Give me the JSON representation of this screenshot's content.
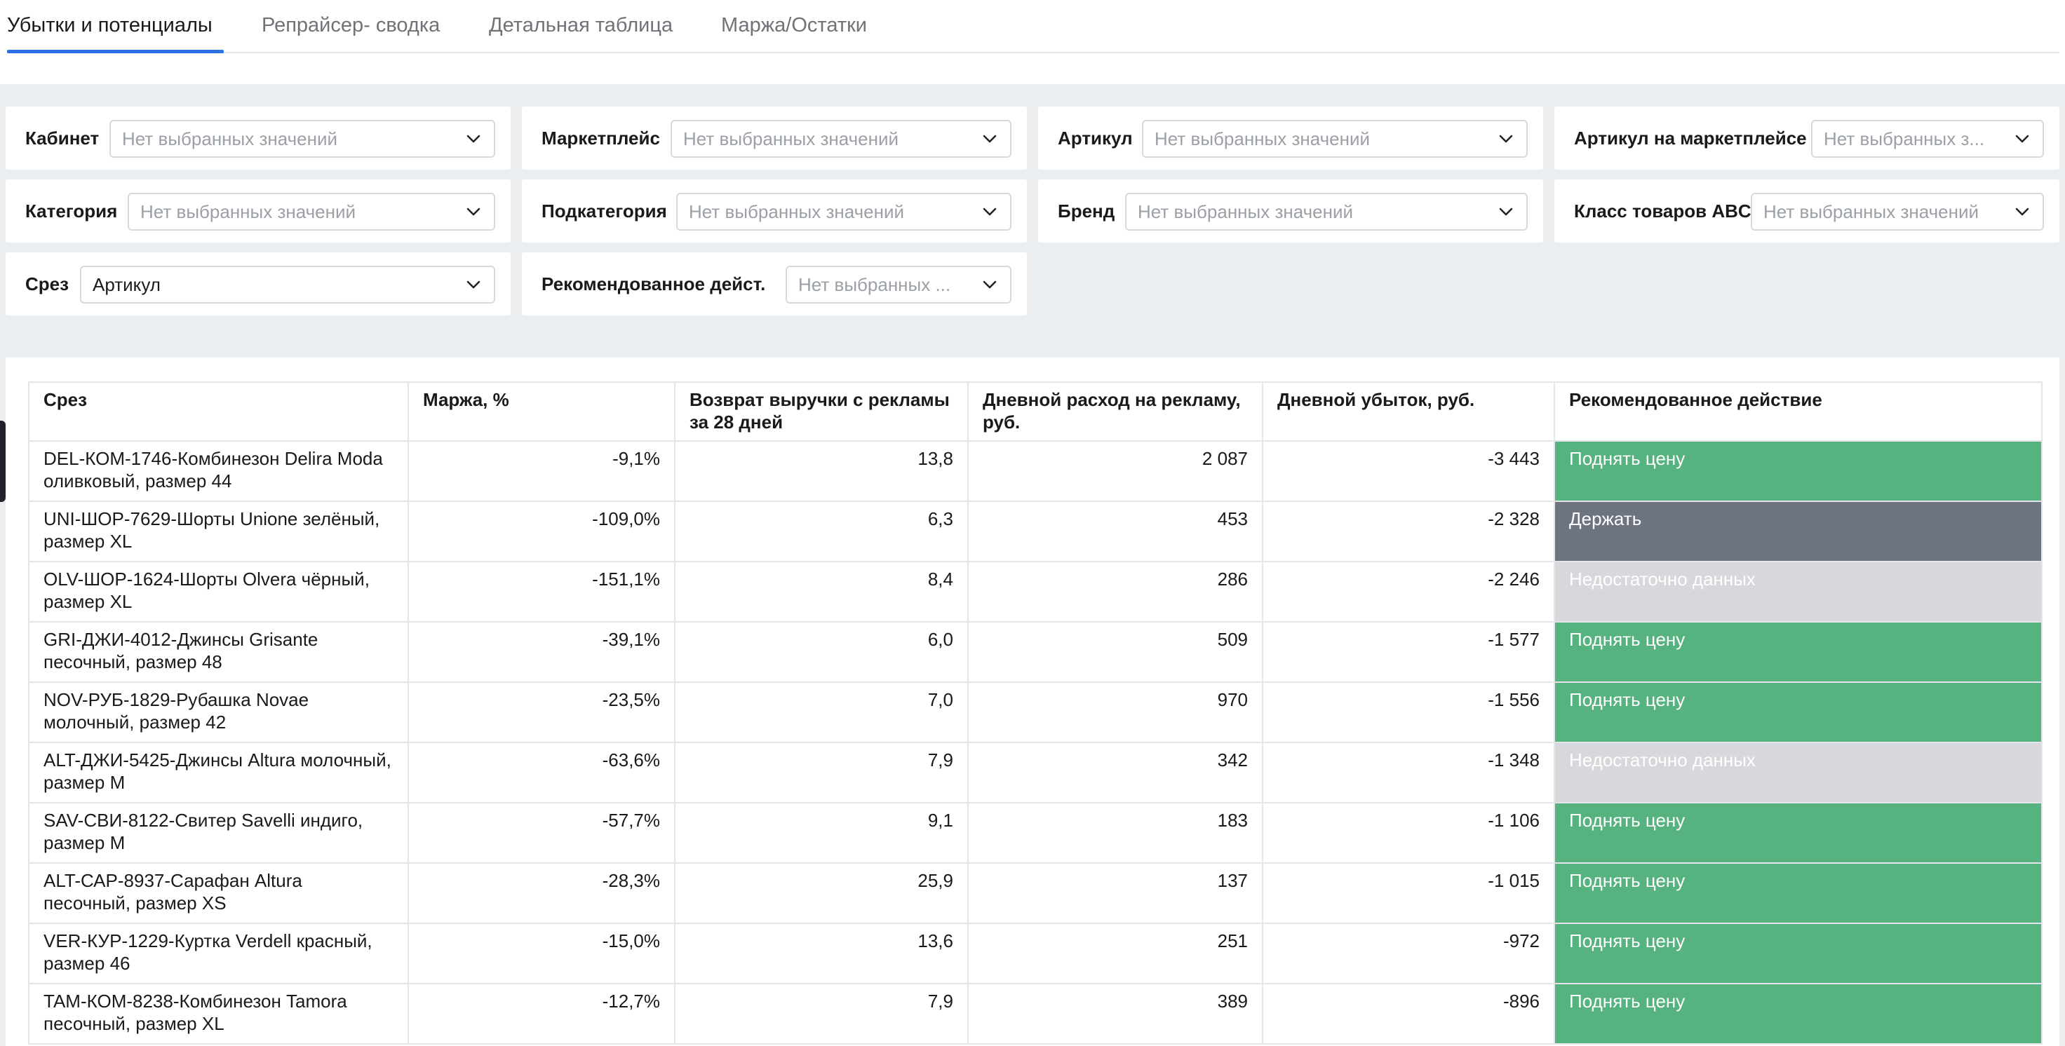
{
  "tabs": [
    {
      "label": "Убытки и потенциалы",
      "active": true
    },
    {
      "label": "Репрайсер- сводка",
      "active": false
    },
    {
      "label": "Детальная таблица",
      "active": false
    },
    {
      "label": "Маржа/Остатки",
      "active": false
    }
  ],
  "filters": [
    {
      "label": "Кабинет",
      "value": "Нет выбранных значений"
    },
    {
      "label": "Маркетплейс",
      "value": "Нет выбранных значений"
    },
    {
      "label": "Артикул",
      "value": "Нет выбранных значений"
    },
    {
      "label": "Артикул на маркетплейсе",
      "value": "Нет выбранных з..."
    },
    {
      "label": "Категория",
      "value": "Нет выбранных значений"
    },
    {
      "label": "Подкатегория",
      "value": "Нет выбранных значений"
    },
    {
      "label": "Бренд",
      "value": "Нет выбранных значений"
    },
    {
      "label": "Класс товаров ABC",
      "value": "Нет выбранных значений"
    },
    {
      "label": "Срез",
      "value": "Артикул"
    },
    {
      "label": "Рекомендованное дейст...",
      "value": "Нет выбранных ..."
    }
  ],
  "table": {
    "headers": [
      "Срез",
      "Маржа, %",
      "Возврат выручки с рекламы за 28 дней",
      "Дневной расход на рекламу, руб.",
      "Дневной убыток, руб.",
      "Рекомендованное действие"
    ],
    "rows": [
      {
        "slice": "DEL-КОМ-1746-Комбинезон Delira Moda оливковый, размер 44",
        "margin": "-9,1%",
        "roas": "13,8",
        "spend": "2 087",
        "loss": "-3 443",
        "action": "Поднять цену",
        "action_type": "green"
      },
      {
        "slice": "UNI-ШОР-7629-Шорты Unione зелёный, размер XL",
        "margin": "-109,0%",
        "roas": "6,3",
        "spend": "453",
        "loss": "-2 328",
        "action": "Держать",
        "action_type": "gray"
      },
      {
        "slice": "OLV-ШОР-1624-Шорты Olvera чёрный, размер XL",
        "margin": "-151,1%",
        "roas": "8,4",
        "spend": "286",
        "loss": "-2 246",
        "action": "Недостаточно данных",
        "action_type": "light"
      },
      {
        "slice": "GRI-ДЖИ-4012-Джинсы Grisante песочный, размер 48",
        "margin": "-39,1%",
        "roas": "6,0",
        "spend": "509",
        "loss": "-1 577",
        "action": "Поднять цену",
        "action_type": "green"
      },
      {
        "slice": "NOV-РУБ-1829-Рубашка Novae молочный, размер 42",
        "margin": "-23,5%",
        "roas": "7,0",
        "spend": "970",
        "loss": "-1 556",
        "action": "Поднять цену",
        "action_type": "green"
      },
      {
        "slice": "ALT-ДЖИ-5425-Джинсы Altura молочный, размер M",
        "margin": "-63,6%",
        "roas": "7,9",
        "spend": "342",
        "loss": "-1 348",
        "action": "Недостаточно данных",
        "action_type": "light"
      },
      {
        "slice": "SAV-СВИ-8122-Свитер Savelli индиго, размер M",
        "margin": "-57,7%",
        "roas": "9,1",
        "spend": "183",
        "loss": "-1 106",
        "action": "Поднять цену",
        "action_type": "green"
      },
      {
        "slice": "ALT-САР-8937-Сарафан Altura песочный, размер XS",
        "margin": "-28,3%",
        "roas": "25,9",
        "spend": "137",
        "loss": "-1 015",
        "action": "Поднять цену",
        "action_type": "green"
      },
      {
        "slice": "VER-КУР-1229-Куртка Verdell красный, размер 46",
        "margin": "-15,0%",
        "roas": "13,6",
        "spend": "251",
        "loss": "-972",
        "action": "Поднять цену",
        "action_type": "green"
      },
      {
        "slice": "TAM-КОМ-8238-Комбинезон Tamora песочный, размер XL",
        "margin": "-12,7%",
        "roas": "7,9",
        "spend": "389",
        "loss": "-896",
        "action": "Поднять цену",
        "action_type": "green"
      }
    ]
  },
  "colors": {
    "tab_accent": "#2f6fe4",
    "action_green": "#56b37f",
    "action_gray": "#6d7480",
    "action_light": "#d6d8db",
    "filter_bg": "#ebeef1"
  }
}
